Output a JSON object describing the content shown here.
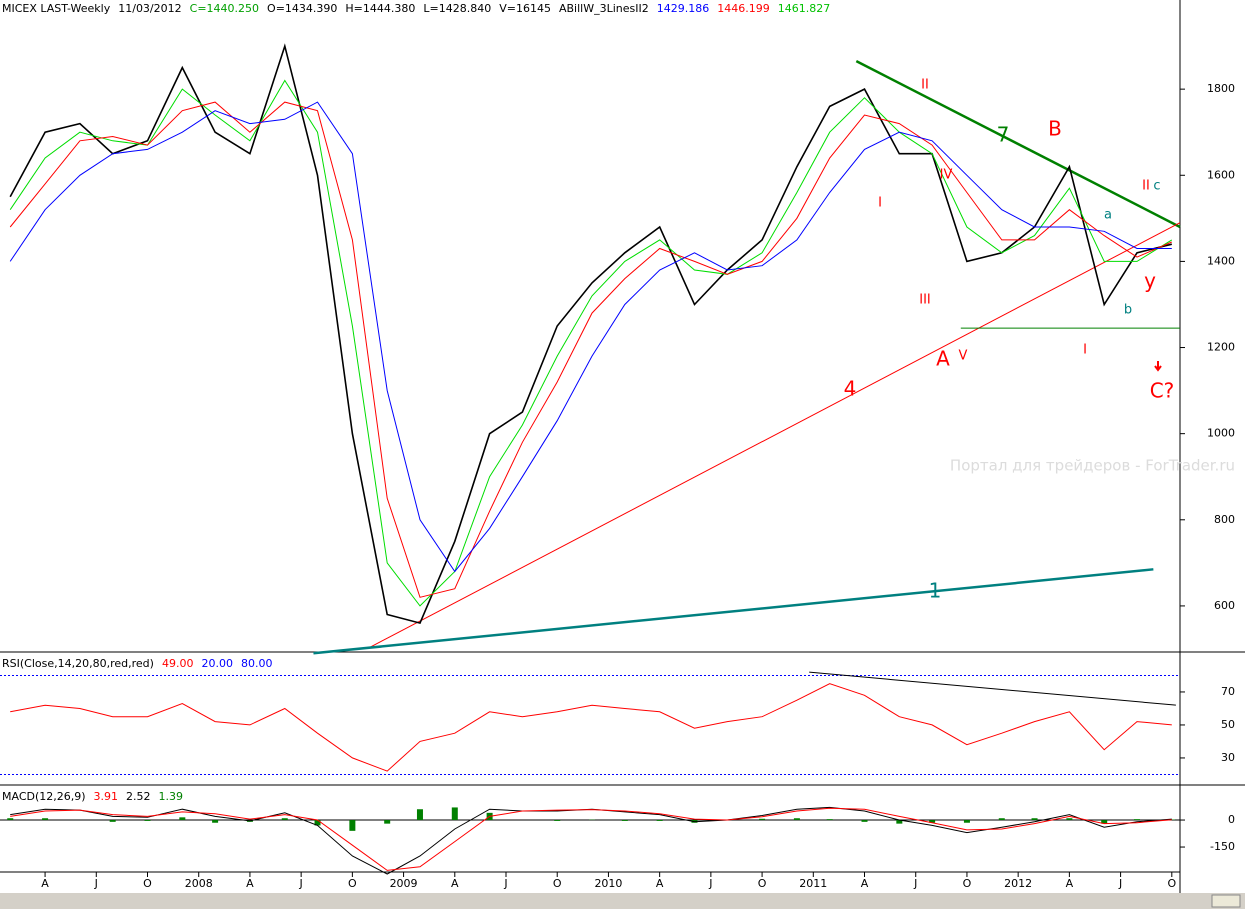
{
  "chart_data": [
    {
      "type": "line",
      "title": "MICEX LAST-Weekly",
      "header_items": [
        {
          "text": "11/03/2012",
          "color": "#000000"
        },
        {
          "text": "C=1440.250",
          "color": "#00a000"
        },
        {
          "text": "O=1434.390",
          "color": "#000000"
        },
        {
          "text": "H=1444.380",
          "color": "#000000"
        },
        {
          "text": "L=1428.840",
          "color": "#000000"
        },
        {
          "text": "V=16145",
          "color": "#000000"
        },
        {
          "text": "ABillW_3LinesII2",
          "color": "#000000"
        },
        {
          "text": "1429.186",
          "color": "#0000ff"
        },
        {
          "text": "1446.199",
          "color": "#ff0000"
        },
        {
          "text": "1461.827",
          "color": "#00c000"
        }
      ],
      "watermark": "Портал для трейдеров - ForTrader.ru",
      "x": [
        2007.08,
        2007.25,
        2007.42,
        2007.58,
        2007.75,
        2007.92,
        2008.08,
        2008.25,
        2008.42,
        2008.58,
        2008.75,
        2008.92,
        2009.08,
        2009.25,
        2009.42,
        2009.58,
        2009.75,
        2009.92,
        2010.08,
        2010.25,
        2010.42,
        2010.58,
        2010.75,
        2010.92,
        2011.08,
        2011.25,
        2011.42,
        2011.58,
        2011.75,
        2011.92,
        2012.08,
        2012.25,
        2012.42,
        2012.58,
        2012.75
      ],
      "series": [
        {
          "name": "Close",
          "color": "#000000",
          "values": [
            1550,
            1700,
            1720,
            1650,
            1680,
            1850,
            1700,
            1650,
            1900,
            1600,
            1000,
            580,
            560,
            750,
            1000,
            1050,
            1250,
            1350,
            1420,
            1480,
            1300,
            1380,
            1450,
            1620,
            1760,
            1800,
            1650,
            1650,
            1400,
            1420,
            1480,
            1620,
            1300,
            1420,
            1440
          ]
        },
        {
          "name": "Fast",
          "color": "#00dd00",
          "values": [
            1520,
            1640,
            1700,
            1680,
            1670,
            1800,
            1740,
            1680,
            1820,
            1700,
            1250,
            700,
            600,
            680,
            900,
            1020,
            1180,
            1320,
            1400,
            1450,
            1380,
            1370,
            1420,
            1560,
            1700,
            1780,
            1700,
            1650,
            1480,
            1420,
            1460,
            1570,
            1400,
            1400,
            1450
          ]
        },
        {
          "name": "Medium",
          "color": "#ff0000",
          "values": [
            1480,
            1580,
            1680,
            1690,
            1670,
            1750,
            1770,
            1700,
            1770,
            1750,
            1450,
            850,
            620,
            640,
            820,
            980,
            1120,
            1280,
            1360,
            1430,
            1400,
            1370,
            1400,
            1500,
            1640,
            1740,
            1720,
            1670,
            1560,
            1450,
            1450,
            1520,
            1460,
            1410,
            1445
          ]
        },
        {
          "name": "Slow",
          "color": "#0000ff",
          "values": [
            1400,
            1520,
            1600,
            1650,
            1660,
            1700,
            1750,
            1720,
            1730,
            1770,
            1650,
            1100,
            800,
            680,
            780,
            900,
            1030,
            1180,
            1300,
            1380,
            1420,
            1380,
            1390,
            1450,
            1560,
            1660,
            1700,
            1680,
            1600,
            1520,
            1480,
            1480,
            1470,
            1430,
            1430
          ]
        }
      ],
      "trendlines": [
        {
          "label": "7",
          "color": "#008000",
          "from": [
            2011.21,
            1865
          ],
          "to": [
            2012.79,
            1480
          ]
        },
        {
          "label": "4",
          "color": "#ff0000",
          "from": [
            2008.84,
            505
          ],
          "to": [
            2012.79,
            1490
          ]
        },
        {
          "label": "1",
          "color": "#008080",
          "from": [
            2008.56,
            490
          ],
          "to": [
            2012.66,
            685
          ]
        },
        {
          "color": "#008000",
          "from": [
            2011.72,
            1245
          ],
          "to": [
            2012.79,
            1245
          ]
        }
      ],
      "annotations": [
        {
          "text": "II",
          "color": "#ff0000"
        },
        {
          "text": "B",
          "color": "#ff0000"
        },
        {
          "text": "IV",
          "color": "#ff0000"
        },
        {
          "text": "I",
          "color": "#ff0000"
        },
        {
          "text": "III",
          "color": "#ff0000"
        },
        {
          "text": "A",
          "color": "#ff0000"
        },
        {
          "text": "V",
          "color": "#ff0000"
        },
        {
          "text": "I",
          "color": "#ff0000"
        },
        {
          "text": "y",
          "color": "#ff0000"
        },
        {
          "text": "b",
          "color": "#008080"
        },
        {
          "text": "a",
          "color": "#008080"
        },
        {
          "text": "II",
          "color": "#ff0000"
        },
        {
          "text": "c",
          "color": "#008080"
        },
        {
          "text": "C?",
          "color": "#ff0000"
        }
      ],
      "xlim": [
        2007.03,
        2012.79
      ],
      "xticks": [
        {
          "value": 2007.25,
          "label": "A"
        },
        {
          "value": 2007.5,
          "label": "J"
        },
        {
          "value": 2007.75,
          "label": "O"
        },
        2008,
        {
          "value": 2008.25,
          "label": "A"
        },
        {
          "value": 2008.5,
          "label": "J"
        },
        {
          "value": 2008.75,
          "label": "O"
        },
        2009,
        {
          "value": 2009.25,
          "label": "A"
        },
        {
          "value": 2009.5,
          "label": "J"
        },
        {
          "value": 2009.75,
          "label": "O"
        },
        2010,
        {
          "value": 2010.25,
          "label": "A"
        },
        {
          "value": 2010.5,
          "label": "J"
        },
        {
          "value": 2010.75,
          "label": "O"
        },
        2011,
        {
          "value": 2011.25,
          "label": "A"
        },
        {
          "value": 2011.5,
          "label": "J"
        },
        {
          "value": 2011.75,
          "label": "O"
        },
        2012,
        {
          "value": 2012.25,
          "label": "A"
        },
        {
          "value": 2012.5,
          "label": "J"
        },
        {
          "value": 2012.75,
          "label": "O"
        }
      ],
      "ylim": [
        493,
        2007
      ],
      "yticks": [
        600,
        800,
        1000,
        1200,
        1400,
        1600,
        1800
      ]
    },
    {
      "type": "line",
      "title": "RSI(Close,14,20,80,red,red)",
      "header_items": [
        {
          "text": "49.00",
          "color": "#ff0000"
        },
        {
          "text": "20.00",
          "color": "#0000ff"
        },
        {
          "text": "80.00",
          "color": "#0000ff"
        }
      ],
      "x": [
        2007.08,
        2007.25,
        2007.42,
        2007.58,
        2007.75,
        2007.92,
        2008.08,
        2008.25,
        2008.42,
        2008.58,
        2008.75,
        2008.92,
        2009.08,
        2009.25,
        2009.42,
        2009.58,
        2009.75,
        2009.92,
        2010.08,
        2010.25,
        2010.42,
        2010.58,
        2010.75,
        2010.92,
        2011.08,
        2011.25,
        2011.42,
        2011.58,
        2011.75,
        2011.92,
        2012.08,
        2012.25,
        2012.42,
        2012.58,
        2012.75
      ],
      "series": [
        {
          "name": "RSI",
          "color": "#ff0000",
          "values": [
            58,
            62,
            60,
            55,
            55,
            63,
            52,
            50,
            60,
            45,
            30,
            22,
            40,
            45,
            58,
            55,
            58,
            62,
            60,
            58,
            48,
            52,
            55,
            65,
            75,
            68,
            55,
            50,
            38,
            45,
            52,
            58,
            35,
            52,
            50
          ]
        }
      ],
      "levels": [
        20,
        80
      ],
      "trendlines": [
        {
          "color": "#000000",
          "from": [
            2010.98,
            82
          ],
          "to": [
            2012.77,
            62
          ]
        }
      ],
      "ylim": [
        13.6,
        92.4
      ],
      "yticks": [
        30,
        50,
        70
      ]
    },
    {
      "type": "line",
      "title": "MACD(12,26,9)",
      "header_items": [
        {
          "text": "3.91",
          "color": "#ff0000"
        },
        {
          "text": "2.52",
          "color": "#000000"
        },
        {
          "text": "1.39",
          "color": "#008000"
        }
      ],
      "x": [
        2007.08,
        2007.25,
        2007.42,
        2007.58,
        2007.75,
        2007.92,
        2008.08,
        2008.25,
        2008.42,
        2008.58,
        2008.75,
        2008.92,
        2009.08,
        2009.25,
        2009.42,
        2009.58,
        2009.75,
        2009.92,
        2010.08,
        2010.25,
        2010.42,
        2010.58,
        2010.75,
        2010.92,
        2011.08,
        2011.25,
        2011.42,
        2011.58,
        2011.75,
        2011.92,
        2012.08,
        2012.25,
        2012.42,
        2012.58,
        2012.75
      ],
      "series": [
        {
          "name": "MACD",
          "color": "#000000",
          "values": [
            30,
            60,
            55,
            20,
            15,
            60,
            20,
            -5,
            40,
            -30,
            -200,
            -300,
            -200,
            -50,
            60,
            50,
            50,
            60,
            45,
            30,
            -10,
            0,
            25,
            60,
            70,
            50,
            0,
            -30,
            -70,
            -40,
            -10,
            30,
            -40,
            -10,
            5
          ]
        },
        {
          "name": "Signal",
          "color": "#ff0000",
          "values": [
            20,
            50,
            55,
            30,
            20,
            45,
            35,
            5,
            30,
            0,
            -140,
            -280,
            -260,
            -120,
            20,
            50,
            55,
            58,
            50,
            35,
            5,
            0,
            18,
            50,
            65,
            60,
            20,
            -15,
            -55,
            -50,
            -20,
            20,
            -20,
            -15,
            2
          ]
        }
      ],
      "histogram": {
        "color": "#008000",
        "values": [
          10,
          10,
          0,
          -10,
          -5,
          15,
          -15,
          -10,
          10,
          -30,
          -60,
          -20,
          60,
          70,
          40,
          0,
          -5,
          2,
          -5,
          -5,
          -15,
          0,
          7,
          10,
          5,
          -10,
          -20,
          -15,
          -15,
          10,
          10,
          10,
          -20,
          5,
          3
        ]
      },
      "ylim": [
        -322,
        178
      ],
      "yticks": [
        -150,
        0
      ]
    }
  ]
}
